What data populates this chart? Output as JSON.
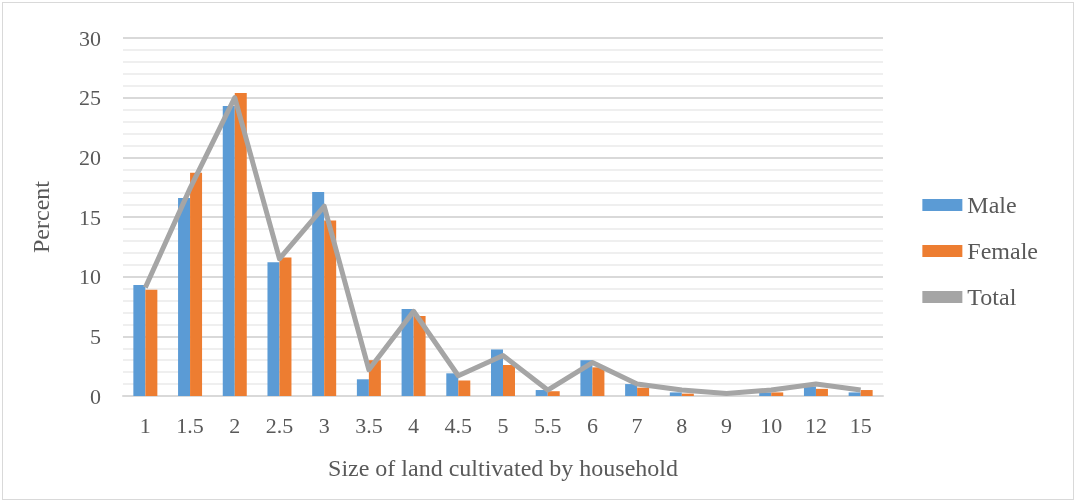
{
  "chart_data": {
    "type": "bar",
    "xlabel": "Size of land cultivated by household",
    "ylabel": "Percent",
    "categories": [
      "1",
      "1.5",
      "2",
      "2.5",
      "3",
      "3.5",
      "4",
      "4.5",
      "5",
      "5.5",
      "6",
      "7",
      "8",
      "9",
      "10",
      "12",
      "15"
    ],
    "series": [
      {
        "name": "Male",
        "color": "#5b9bd5",
        "values": [
          9.3,
          16.6,
          24.3,
          11.2,
          17.1,
          1.4,
          7.3,
          1.9,
          3.9,
          0.5,
          3.0,
          1.0,
          0.3,
          null,
          0.3,
          0.8,
          0.3
        ]
      },
      {
        "name": "Female",
        "color": "#ed7d31",
        "values": [
          8.9,
          18.7,
          25.4,
          11.6,
          14.7,
          3.0,
          6.7,
          1.3,
          2.6,
          0.4,
          2.4,
          0.7,
          0.2,
          null,
          0.3,
          0.6,
          0.5
        ]
      },
      {
        "name": "Total",
        "type": "line",
        "color": "#a5a5a5",
        "values": [
          9.1,
          17.4,
          25.0,
          11.5,
          15.9,
          2.2,
          7.1,
          1.7,
          3.4,
          0.5,
          2.8,
          1.0,
          0.5,
          0.2,
          0.5,
          1.0,
          0.5
        ]
      }
    ],
    "ylim": [
      0,
      30
    ],
    "yticks": [
      0,
      5,
      10,
      15,
      20,
      25,
      30
    ],
    "grid": true,
    "legend": "right",
    "marker": "none"
  }
}
